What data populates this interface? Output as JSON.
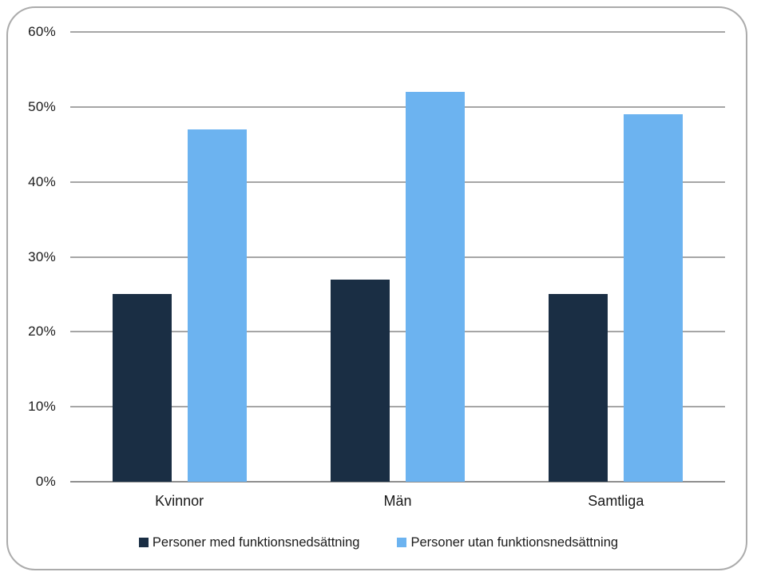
{
  "chart_data": {
    "type": "bar",
    "title": "",
    "xlabel": "",
    "ylabel": "",
    "categories": [
      "Kvinnor",
      "Män",
      "Samtliga"
    ],
    "series": [
      {
        "name": "Personer med funktionsnedsättning",
        "color": "#1a2e44",
        "values": [
          25,
          27,
          25
        ]
      },
      {
        "name": "Personer utan funktionsnedsättning",
        "color": "#6cb3f0",
        "values": [
          47,
          52,
          49
        ]
      }
    ],
    "ylim": [
      0,
      60
    ],
    "ytick_step": 10,
    "ytick_labels": [
      "0%",
      "10%",
      "20%",
      "30%",
      "40%",
      "50%",
      "60%"
    ],
    "grid": true,
    "legend_position": "bottom"
  },
  "colors": {
    "gridline": "#a6a6a6",
    "axis_line": "#8f8f8f",
    "frame_border": "#ababab",
    "background": "#ffffff",
    "text": "#1a1a1a"
  }
}
